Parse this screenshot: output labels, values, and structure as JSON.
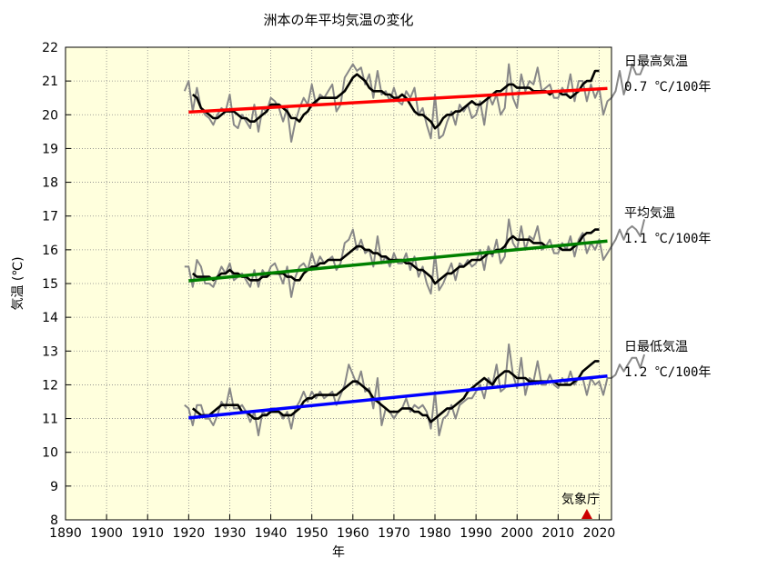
{
  "chart_data": {
    "type": "line",
    "title": "洲本の年平均気温の変化",
    "xlabel": "年",
    "ylabel": "気温 (℃)",
    "xlim": [
      1890,
      2023
    ],
    "ylim": [
      8,
      22
    ],
    "x_ticks": [
      "1890",
      "1900",
      "1910",
      "1920",
      "1930",
      "1940",
      "1950",
      "1960",
      "1970",
      "1980",
      "1990",
      "2000",
      "2010",
      "2020"
    ],
    "y_ticks": [
      "8",
      "9",
      "10",
      "11",
      "12",
      "13",
      "14",
      "15",
      "16",
      "17",
      "18",
      "19",
      "20",
      "21",
      "22"
    ],
    "grid": true,
    "plot_background": "#ffffdd",
    "series_groups": [
      {
        "label": "日最高気温",
        "trend_label": "0.7 ℃/100年",
        "trend_color": "#ff0000",
        "trend_line": {
          "x": [
            1920,
            2022
          ],
          "y": [
            20.08,
            20.78
          ]
        },
        "annual": {
          "x_start": 1919,
          "values": [
            20.7,
            21.0,
            20.1,
            20.8,
            20.2,
            20.0,
            19.9,
            19.7,
            20.0,
            20.2,
            20.1,
            20.6,
            19.7,
            19.6,
            20.0,
            19.8,
            19.6,
            20.3,
            19.5,
            20.2,
            20.1,
            20.5,
            20.4,
            20.2,
            19.8,
            20.2,
            19.2,
            19.8,
            20.2,
            20.5,
            20.3,
            20.9,
            20.3,
            20.6,
            20.5,
            20.7,
            20.9,
            20.1,
            20.3,
            21.1,
            21.3,
            21.5,
            21.3,
            21.4,
            20.9,
            21.2,
            20.5,
            21.3,
            20.6,
            20.7,
            20.4,
            20.8,
            20.4,
            20.3,
            20.7,
            20.5,
            20.8,
            20.0,
            20.2,
            19.7,
            19.3,
            20.6,
            19.3,
            19.4,
            19.8,
            20.1,
            19.7,
            20.3,
            20.1,
            20.3,
            19.9,
            20.0,
            20.4,
            19.7,
            20.6,
            20.3,
            20.6,
            20.0,
            20.2,
            21.5,
            20.5,
            20.2,
            21.2,
            20.7,
            21.0,
            20.9,
            21.4,
            20.7,
            20.8,
            20.9,
            20.5,
            20.5,
            20.8,
            20.6,
            21.2,
            20.4,
            21.0,
            21.0,
            20.4,
            20.9,
            20.5,
            20.8,
            20.0,
            20.4,
            20.5,
            20.7,
            21.3,
            20.6,
            21.0,
            21.5,
            21.2,
            21.2,
            21.5
          ]
        },
        "moving_avg_5yr": {
          "x_start": 1921,
          "values": [
            20.6,
            20.5,
            20.2,
            20.1,
            20.0,
            19.9,
            19.9,
            20.0,
            20.1,
            20.1,
            20.1,
            20.0,
            19.9,
            19.9,
            19.8,
            19.8,
            19.9,
            20.0,
            20.1,
            20.3,
            20.3,
            20.3,
            20.2,
            20.1,
            19.9,
            19.9,
            19.8,
            20.0,
            20.1,
            20.3,
            20.4,
            20.5,
            20.5,
            20.5,
            20.5,
            20.5,
            20.6,
            20.7,
            20.9,
            21.1,
            21.2,
            21.1,
            21.0,
            20.8,
            20.7,
            20.7,
            20.7,
            20.6,
            20.6,
            20.5,
            20.5,
            20.6,
            20.5,
            20.3,
            20.1,
            20.0,
            20.0,
            19.9,
            19.8,
            19.6,
            19.7,
            19.9,
            20.0,
            20.0,
            20.1,
            20.1,
            20.2,
            20.3,
            20.4,
            20.3,
            20.3,
            20.4,
            20.5,
            20.6,
            20.7,
            20.7,
            20.8,
            20.9,
            20.9,
            20.8,
            20.8,
            20.8,
            20.8,
            20.7,
            20.7,
            20.7,
            20.7,
            20.6,
            20.7,
            20.7,
            20.6,
            20.6,
            20.5,
            20.6,
            20.7,
            20.9,
            21.0,
            21.0,
            21.3,
            21.3
          ]
        }
      },
      {
        "label": "平均気温",
        "trend_label": "1.1 ℃/100年",
        "trend_color": "#008000",
        "trend_line": {
          "x": [
            1920,
            2022
          ],
          "y": [
            15.08,
            16.26
          ]
        },
        "annual": {
          "x_start": 1919,
          "values": [
            15.5,
            15.5,
            14.9,
            15.7,
            15.5,
            15.0,
            15.0,
            14.9,
            15.2,
            15.5,
            15.3,
            15.6,
            15.1,
            15.2,
            15.3,
            15.1,
            14.9,
            15.4,
            14.9,
            15.4,
            15.2,
            15.5,
            15.6,
            15.3,
            15.0,
            15.5,
            14.6,
            15.2,
            15.5,
            15.6,
            15.4,
            15.9,
            15.5,
            15.8,
            15.6,
            15.7,
            15.8,
            15.4,
            15.6,
            16.2,
            16.3,
            16.6,
            16.0,
            16.3,
            15.9,
            16.0,
            15.5,
            16.4,
            15.6,
            15.8,
            15.5,
            15.9,
            15.6,
            15.6,
            15.9,
            15.4,
            15.8,
            15.2,
            15.5,
            15.0,
            14.7,
            15.9,
            14.8,
            15.0,
            15.3,
            15.6,
            15.1,
            15.6,
            15.5,
            15.7,
            15.5,
            15.6,
            16.0,
            15.4,
            16.1,
            15.8,
            16.3,
            15.6,
            15.8,
            16.9,
            16.2,
            16.0,
            16.7,
            16.0,
            16.4,
            16.3,
            16.7,
            16.0,
            16.1,
            16.3,
            15.9,
            15.9,
            16.2,
            16.0,
            16.4,
            15.8,
            16.3,
            16.5,
            15.9,
            16.2,
            16.0,
            16.3,
            15.7,
            15.9,
            16.1,
            16.3,
            16.6,
            16.3,
            16.6,
            16.7,
            16.6,
            16.4,
            16.9
          ]
        },
        "moving_avg_5yr": {
          "x_start": 1921,
          "values": [
            15.3,
            15.2,
            15.2,
            15.2,
            15.2,
            15.1,
            15.2,
            15.3,
            15.3,
            15.4,
            15.3,
            15.3,
            15.2,
            15.2,
            15.1,
            15.1,
            15.1,
            15.2,
            15.2,
            15.3,
            15.3,
            15.3,
            15.3,
            15.2,
            15.2,
            15.1,
            15.1,
            15.3,
            15.4,
            15.5,
            15.5,
            15.6,
            15.6,
            15.7,
            15.7,
            15.7,
            15.7,
            15.8,
            15.9,
            16.0,
            16.1,
            16.1,
            16.0,
            16.0,
            15.9,
            15.9,
            15.8,
            15.8,
            15.7,
            15.7,
            15.7,
            15.7,
            15.6,
            15.6,
            15.5,
            15.4,
            15.4,
            15.3,
            15.2,
            15.0,
            15.1,
            15.2,
            15.3,
            15.3,
            15.4,
            15.5,
            15.5,
            15.6,
            15.7,
            15.7,
            15.7,
            15.8,
            15.9,
            15.9,
            16.0,
            16.0,
            16.1,
            16.3,
            16.4,
            16.3,
            16.3,
            16.3,
            16.3,
            16.2,
            16.2,
            16.2,
            16.1,
            16.1,
            16.1,
            16.1,
            16.0,
            16.0,
            16.0,
            16.1,
            16.2,
            16.4,
            16.5,
            16.5,
            16.6,
            16.6
          ]
        }
      },
      {
        "label": "日最低気温",
        "trend_label": "1.2 ℃/100年",
        "trend_color": "#0000ff",
        "trend_line": {
          "x": [
            1920,
            2022
          ],
          "y": [
            11.02,
            12.26
          ]
        },
        "annual": {
          "x_start": 1919,
          "values": [
            11.4,
            11.3,
            10.8,
            11.4,
            11.4,
            11.0,
            11.0,
            10.8,
            11.1,
            11.5,
            11.3,
            11.9,
            11.3,
            11.3,
            11.4,
            11.2,
            10.9,
            11.2,
            10.5,
            11.2,
            11.1,
            11.3,
            11.3,
            11.2,
            11.0,
            11.2,
            10.7,
            11.3,
            11.5,
            11.8,
            11.5,
            11.8,
            11.6,
            11.8,
            11.6,
            11.7,
            11.8,
            11.4,
            11.7,
            12.0,
            12.6,
            12.3,
            12.0,
            12.4,
            11.8,
            11.9,
            11.3,
            12.2,
            10.8,
            11.3,
            11.2,
            11.0,
            11.2,
            11.3,
            11.6,
            11.2,
            11.4,
            11.3,
            11.4,
            11.2,
            10.7,
            11.8,
            10.5,
            11.0,
            11.1,
            11.4,
            11.0,
            11.4,
            11.5,
            11.6,
            11.6,
            11.8,
            12.0,
            11.6,
            12.2,
            12.0,
            12.6,
            11.8,
            11.9,
            13.2,
            12.3,
            11.9,
            12.8,
            11.7,
            12.2,
            12.1,
            12.7,
            12.0,
            12.0,
            12.3,
            12.0,
            11.9,
            12.2,
            12.0,
            12.4,
            12.0,
            12.2,
            12.2,
            11.7,
            12.2,
            12.0,
            12.1,
            11.7,
            12.2,
            12.2,
            12.3,
            12.6,
            12.4,
            12.6,
            12.8,
            12.8,
            12.5,
            12.9
          ]
        },
        "moving_avg_5yr": {
          "x_start": 1921,
          "values": [
            11.3,
            11.2,
            11.1,
            11.1,
            11.1,
            11.2,
            11.3,
            11.4,
            11.4,
            11.4,
            11.4,
            11.4,
            11.2,
            11.2,
            11.1,
            11.0,
            11.0,
            11.1,
            11.1,
            11.2,
            11.2,
            11.2,
            11.1,
            11.1,
            11.1,
            11.2,
            11.3,
            11.5,
            11.6,
            11.6,
            11.7,
            11.7,
            11.7,
            11.7,
            11.7,
            11.7,
            11.8,
            11.9,
            12.0,
            12.1,
            12.1,
            12.0,
            11.9,
            11.8,
            11.6,
            11.5,
            11.4,
            11.3,
            11.2,
            11.2,
            11.2,
            11.3,
            11.3,
            11.3,
            11.2,
            11.2,
            11.1,
            11.1,
            10.9,
            11.0,
            11.1,
            11.2,
            11.3,
            11.3,
            11.4,
            11.5,
            11.6,
            11.8,
            11.9,
            12.0,
            12.1,
            12.2,
            12.1,
            12.0,
            12.2,
            12.3,
            12.4,
            12.4,
            12.3,
            12.2,
            12.2,
            12.2,
            12.1,
            12.1,
            12.1,
            12.1,
            12.1,
            12.1,
            12.1,
            12.0,
            12.0,
            12.0,
            12.0,
            12.1,
            12.2,
            12.4,
            12.5,
            12.6,
            12.7,
            12.7
          ]
        }
      }
    ],
    "annotation": {
      "text": "気象庁",
      "marker_year": 2017,
      "marker_color": "#cc0000"
    }
  }
}
